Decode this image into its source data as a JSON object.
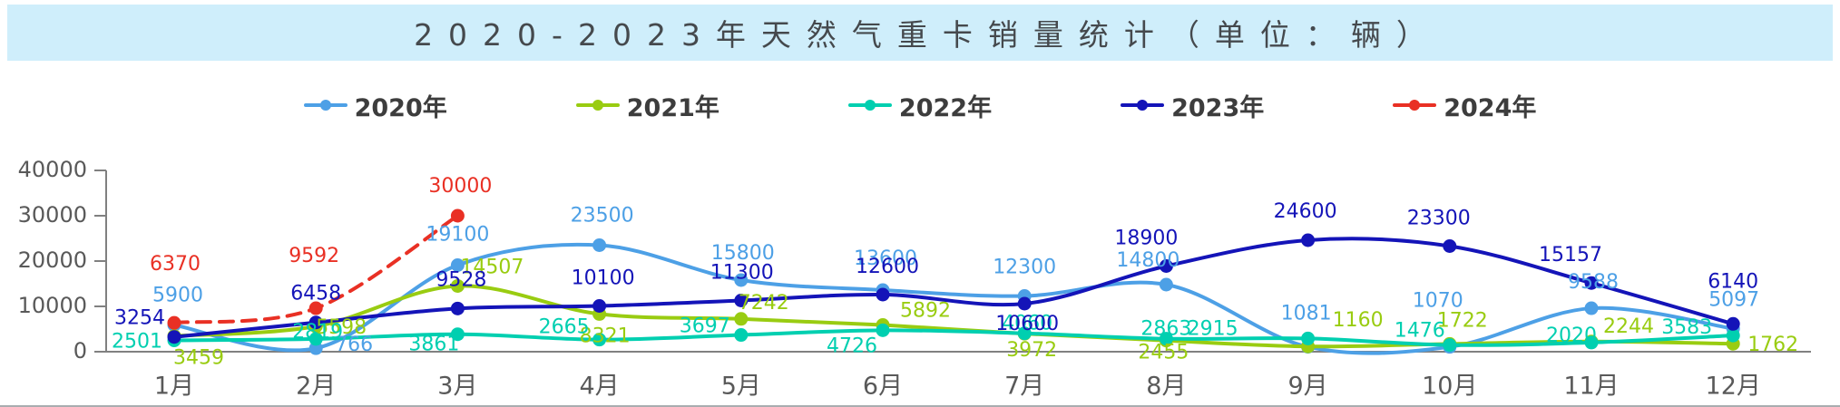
{
  "title": {
    "text": "2020-2023年天然气重卡销量统计（单位：辆）"
  },
  "chart_data": {
    "type": "line",
    "title": "2020-2023年天然气重卡销量统计（单位：辆）",
    "x": [
      "1月",
      "2月",
      "3月",
      "4月",
      "5月",
      "6月",
      "7月",
      "8月",
      "9月",
      "10月",
      "11月",
      "12月"
    ],
    "series": [
      {
        "name": "2020年",
        "color": "#4da0e6",
        "style": "solid",
        "values": [
          5900,
          766,
          19100,
          23500,
          15800,
          13600,
          12300,
          14800,
          1081,
          1070,
          9588,
          5097
        ]
      },
      {
        "name": "2021年",
        "color": "#99cc11",
        "style": "solid",
        "values": [
          3459,
          5598,
          14507,
          8321,
          7242,
          5892,
          3972,
          2455,
          1160,
          1722,
          2244,
          1762
        ]
      },
      {
        "name": "2022年",
        "color": "#00cfb0",
        "style": "solid",
        "values": [
          2501,
          2819,
          3861,
          2665,
          3697,
          4726,
          4060,
          2863,
          2915,
          1476,
          2020,
          3583
        ]
      },
      {
        "name": "2023年",
        "color": "#1414b8",
        "style": "solid",
        "values": [
          3254,
          6458,
          9528,
          10100,
          11300,
          12600,
          10600,
          18900,
          24600,
          23300,
          15157,
          6140
        ]
      },
      {
        "name": "2024年",
        "color": "#e93024",
        "style": "dashed",
        "values": [
          6370,
          9592,
          30000,
          null,
          null,
          null,
          null,
          null,
          null,
          null,
          null,
          null
        ]
      }
    ],
    "xlabel": "",
    "ylabel": "",
    "ylim": [
      0,
      40000
    ],
    "yticks": [
      0,
      10000,
      20000,
      30000,
      40000
    ],
    "legend_position": "top",
    "grid": false,
    "data_labels": true,
    "axis_color": "#808080",
    "tick_label_color": "#595959"
  }
}
